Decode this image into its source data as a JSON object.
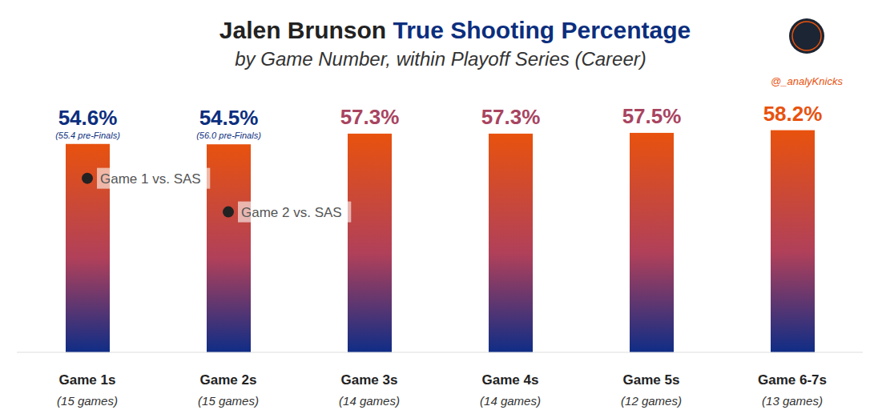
{
  "chart_data": {
    "type": "bar",
    "title": "Jalen Brunson True Shooting Percentage",
    "subtitle": "by Game Number, within Playoff Series (Career)",
    "credit": "@_analyKnicks",
    "categories": [
      "Game 1s",
      "Game 2s",
      "Game 3s",
      "Game 4s",
      "Game 5s",
      "Game 6-7s"
    ],
    "category_notes": [
      "(15 games)",
      "(15 games)",
      "(14 games)",
      "(14 games)",
      "(12 games)",
      "(13 games)"
    ],
    "values": [
      54.6,
      54.5,
      57.3,
      57.3,
      57.5,
      58.2
    ],
    "value_labels": [
      "54.6%",
      "54.5%",
      "57.3%",
      "57.3%",
      "57.5%",
      "58.2%"
    ],
    "data_labels": true,
    "color": "#e8520e",
    "ylim": [
      0,
      60
    ],
    "tick_labels": "x",
    "grid": false,
    "annotations": [
      {
        "category": "Game 1s",
        "text": "(55.4 pre-Finals)"
      },
      {
        "category": "Game 2s",
        "text": "(56.0 pre-Finals)"
      }
    ],
    "points": [
      {
        "category": "Game 1s",
        "value": 45.6,
        "label": "Game 1 vs. SAS"
      },
      {
        "category": "Game 2s",
        "value": 36.8,
        "label": "Game 2 vs. SAS"
      }
    ]
  }
}
